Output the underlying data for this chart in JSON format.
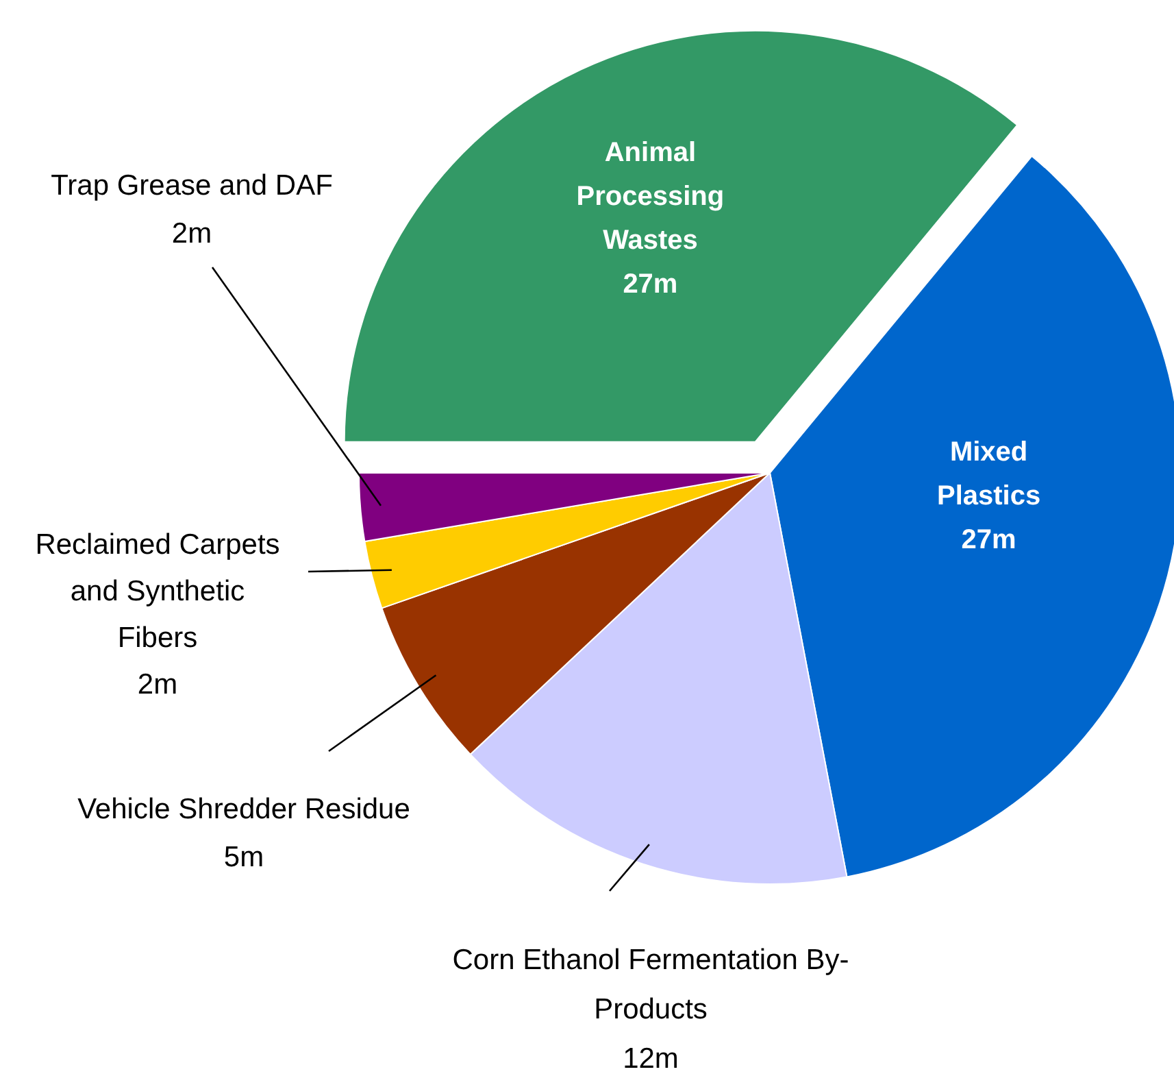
{
  "chart_data": {
    "type": "pie",
    "categories": [
      "Animal Processing Wastes",
      "Mixed Plastics",
      "Corn Ethanol Fermentation By-Products",
      "Vehicle Shredder Residue",
      "Reclaimed Carpets and Synthetic Fibers",
      "Trap Grease and DAF"
    ],
    "values": [
      27,
      27,
      12,
      5,
      2,
      2
    ],
    "value_labels": [
      "27m",
      "27m",
      "12m",
      "5m",
      "2m",
      "2m"
    ],
    "colors": [
      "#339966",
      "#0066cc",
      "#ccccff",
      "#993300",
      "#ffcc00",
      "#800080"
    ],
    "legend": false
  }
}
